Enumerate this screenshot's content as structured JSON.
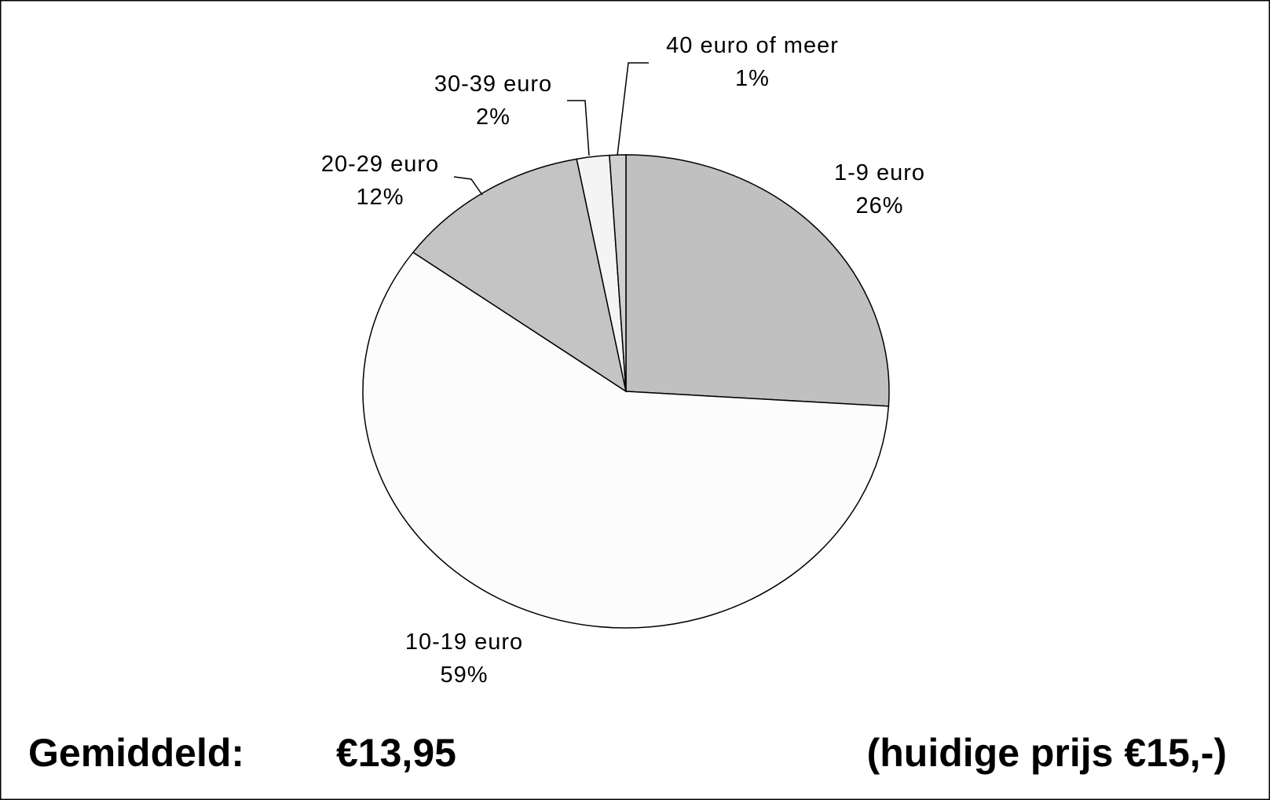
{
  "chart_data": {
    "type": "pie",
    "categories": [
      "1-9 euro",
      "10-19 euro",
      "20-29 euro",
      "30-39 euro",
      "40 euro of meer"
    ],
    "values": [
      26,
      59,
      12,
      2,
      1
    ],
    "value_labels": [
      "26%",
      "59%",
      "12%",
      "2%",
      "1%"
    ],
    "colors": [
      "#c0c0c0",
      "#fcfcfc",
      "#c4c4c4",
      "#f4f4f4",
      "#d0d0d0"
    ],
    "annotations": [
      "Gemiddeld:",
      "€13,95",
      "(huidige prijs €15,-)"
    ]
  }
}
